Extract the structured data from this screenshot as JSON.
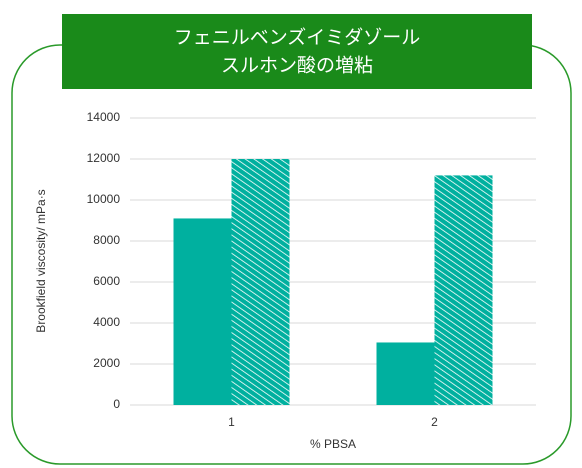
{
  "chart_data": {
    "type": "bar",
    "title_lines": [
      "フェニルベンズイミダゾール",
      "スルホン酸の増粘"
    ],
    "y_label": "Brookfield viscosity/ mPa·s",
    "x_label": "% PBSA",
    "categories": [
      "1",
      "2"
    ],
    "series": [
      {
        "color": "#00b09f",
        "pattern": "solid",
        "values": [
          9100,
          3050
        ]
      },
      {
        "color": "#00b09f",
        "pattern": "hatch",
        "values": [
          12000,
          11200
        ]
      }
    ],
    "ylim": [
      0,
      14000
    ],
    "yticks": [
      0,
      2000,
      4000,
      6000,
      8000,
      10000,
      12000,
      14000
    ],
    "grid": true
  }
}
